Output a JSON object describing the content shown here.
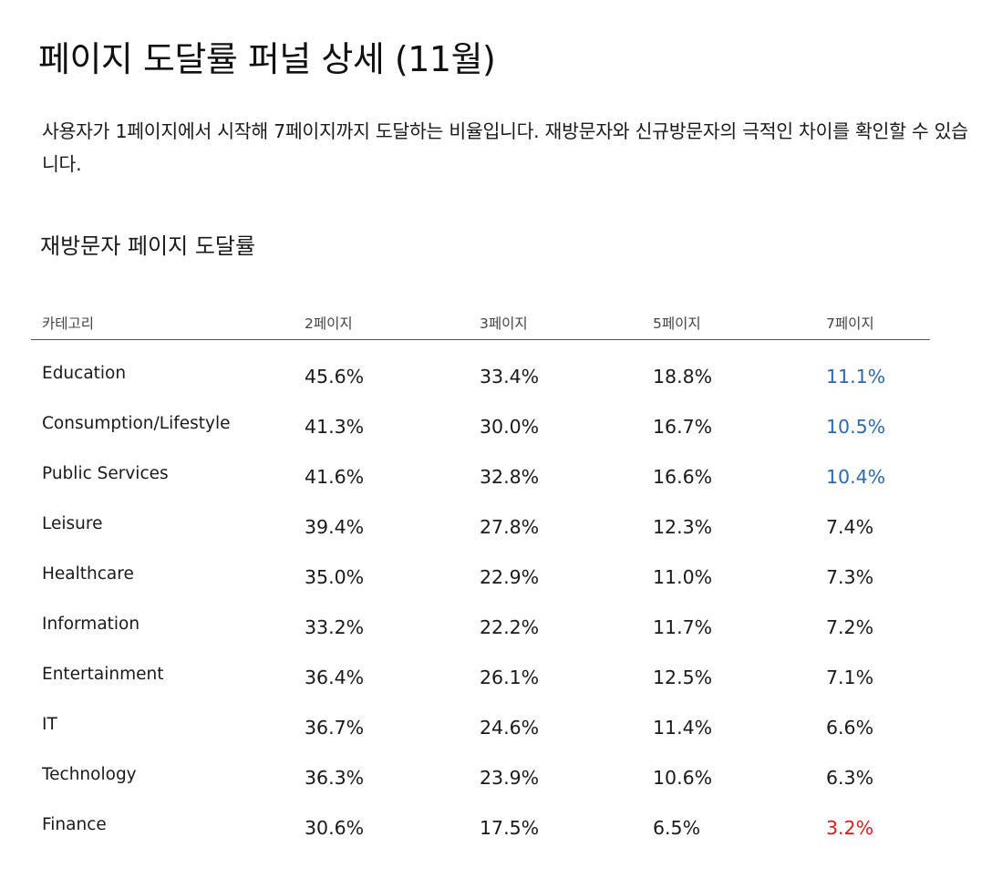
{
  "title": "페이지 도달률 퍼널 상세 (11월)",
  "description": "사용자가 1페이지에서 시작해 7페이지까지 도달하는 비율입니다. 재방문자와 신규방문자의 극적인 차이를 확인할 수 있습니다.",
  "section_title": "재방문자 페이지 도달률",
  "colors": {
    "highlight_high": "#2a6ab5",
    "highlight_low": "#e31a1a"
  },
  "table": {
    "headers": [
      "카테고리",
      "2페이지",
      "3페이지",
      "5페이지",
      "7페이지"
    ],
    "rows": [
      {
        "category": "Education",
        "p2": "45.6%",
        "p3": "33.4%",
        "p5": "18.8%",
        "p7": "11.1%",
        "p7_highlight": "high"
      },
      {
        "category": "Consumption/Lifestyle",
        "p2": "41.3%",
        "p3": "30.0%",
        "p5": "16.7%",
        "p7": "10.5%",
        "p7_highlight": "high"
      },
      {
        "category": "Public Services",
        "p2": "41.6%",
        "p3": "32.8%",
        "p5": "16.6%",
        "p7": "10.4%",
        "p7_highlight": "high"
      },
      {
        "category": "Leisure",
        "p2": "39.4%",
        "p3": "27.8%",
        "p5": "12.3%",
        "p7": "7.4%",
        "p7_highlight": "none"
      },
      {
        "category": "Healthcare",
        "p2": "35.0%",
        "p3": "22.9%",
        "p5": "11.0%",
        "p7": "7.3%",
        "p7_highlight": "none"
      },
      {
        "category": "Information",
        "p2": "33.2%",
        "p3": "22.2%",
        "p5": "11.7%",
        "p7": "7.2%",
        "p7_highlight": "none"
      },
      {
        "category": "Entertainment",
        "p2": "36.4%",
        "p3": "26.1%",
        "p5": "12.5%",
        "p7": "7.1%",
        "p7_highlight": "none"
      },
      {
        "category": "IT",
        "p2": "36.7%",
        "p3": "24.6%",
        "p5": "11.4%",
        "p7": "6.6%",
        "p7_highlight": "none"
      },
      {
        "category": "Technology",
        "p2": "36.3%",
        "p3": "23.9%",
        "p5": "10.6%",
        "p7": "6.3%",
        "p7_highlight": "none"
      },
      {
        "category": "Finance",
        "p2": "30.6%",
        "p3": "17.5%",
        "p5": "6.5%",
        "p7": "3.2%",
        "p7_highlight": "low"
      }
    ]
  }
}
